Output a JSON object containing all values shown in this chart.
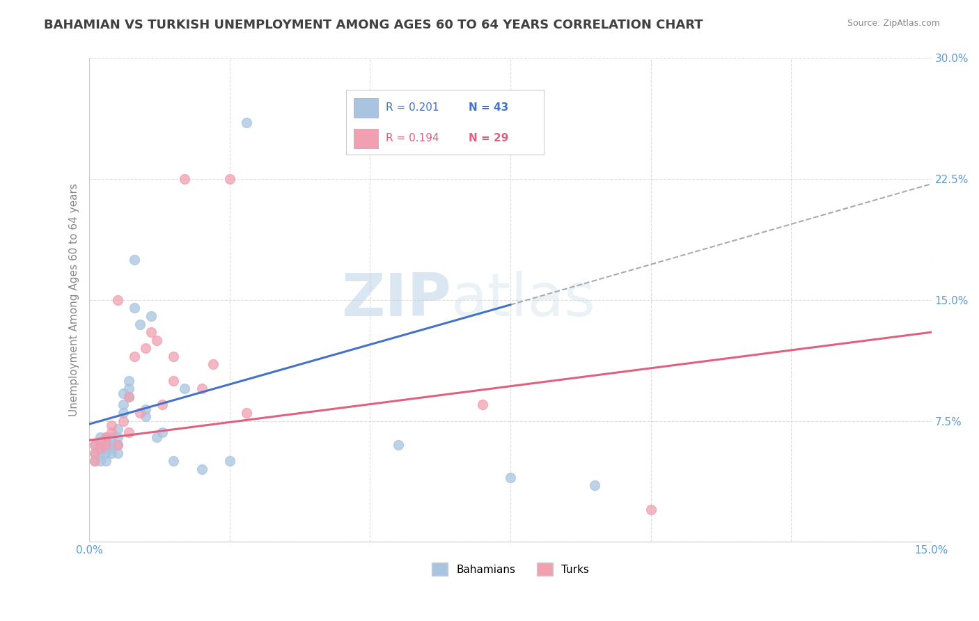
{
  "title": "BAHAMIAN VS TURKISH UNEMPLOYMENT AMONG AGES 60 TO 64 YEARS CORRELATION CHART",
  "source": "Source: ZipAtlas.com",
  "xlabel": "",
  "ylabel": "Unemployment Among Ages 60 to 64 years",
  "xlim": [
    0.0,
    0.15
  ],
  "ylim": [
    0.0,
    0.3
  ],
  "xticks": [
    0.0,
    0.025,
    0.05,
    0.075,
    0.1,
    0.125,
    0.15
  ],
  "yticks": [
    0.0,
    0.075,
    0.15,
    0.225,
    0.3
  ],
  "xtick_labels": [
    "0.0%",
    "",
    "",
    "",
    "",
    "",
    "15.0%"
  ],
  "ytick_labels": [
    "",
    "7.5%",
    "15.0%",
    "22.5%",
    "30.0%"
  ],
  "legend_r1": "R = 0.201",
  "legend_n1": "N = 43",
  "legend_r2": "R = 0.194",
  "legend_n2": "N = 29",
  "bahamian_color": "#a8c4e0",
  "turkish_color": "#f0a0b0",
  "trendline1_color": "#4472c4",
  "trendline2_color": "#e06080",
  "trendline_dash_color": "#aaaaaa",
  "watermark_zip": "ZIP",
  "watermark_atlas": "atlas",
  "background_color": "#ffffff",
  "bahamian_x": [
    0.001,
    0.001,
    0.001,
    0.002,
    0.002,
    0.002,
    0.002,
    0.003,
    0.003,
    0.003,
    0.003,
    0.003,
    0.003,
    0.004,
    0.004,
    0.004,
    0.004,
    0.005,
    0.005,
    0.005,
    0.005,
    0.006,
    0.006,
    0.006,
    0.007,
    0.007,
    0.007,
    0.008,
    0.008,
    0.009,
    0.01,
    0.01,
    0.011,
    0.012,
    0.013,
    0.015,
    0.017,
    0.02,
    0.025,
    0.028,
    0.055,
    0.075,
    0.09
  ],
  "bahamian_y": [
    0.05,
    0.055,
    0.06,
    0.05,
    0.055,
    0.06,
    0.065,
    0.05,
    0.055,
    0.058,
    0.06,
    0.062,
    0.065,
    0.055,
    0.058,
    0.06,
    0.065,
    0.055,
    0.06,
    0.065,
    0.07,
    0.08,
    0.085,
    0.092,
    0.09,
    0.095,
    0.1,
    0.145,
    0.175,
    0.135,
    0.078,
    0.082,
    0.14,
    0.065,
    0.068,
    0.05,
    0.095,
    0.045,
    0.05,
    0.26,
    0.06,
    0.04,
    0.035
  ],
  "turkish_x": [
    0.001,
    0.001,
    0.001,
    0.002,
    0.002,
    0.003,
    0.003,
    0.004,
    0.004,
    0.005,
    0.005,
    0.006,
    0.007,
    0.007,
    0.008,
    0.009,
    0.01,
    0.011,
    0.012,
    0.013,
    0.015,
    0.015,
    0.017,
    0.02,
    0.022,
    0.025,
    0.028,
    0.07,
    0.1
  ],
  "turkish_y": [
    0.05,
    0.055,
    0.06,
    0.058,
    0.062,
    0.06,
    0.065,
    0.068,
    0.072,
    0.06,
    0.15,
    0.075,
    0.068,
    0.09,
    0.115,
    0.08,
    0.12,
    0.13,
    0.125,
    0.085,
    0.115,
    0.1,
    0.225,
    0.095,
    0.11,
    0.225,
    0.08,
    0.085,
    0.02
  ],
  "trendline1_x0": 0.0,
  "trendline1_y0": 0.073,
  "trendline1_x1": 0.075,
  "trendline1_y1": 0.147,
  "trendline1_dash_x1": 0.15,
  "trendline1_dash_y1": 0.222,
  "trendline2_x0": 0.0,
  "trendline2_y0": 0.063,
  "trendline2_x1": 0.15,
  "trendline2_y1": 0.13,
  "grid_color": "#dddddd",
  "title_fontsize": 13,
  "label_fontsize": 11,
  "tick_fontsize": 11,
  "axis_label_color": "#5b9bd5",
  "title_color": "#404040"
}
